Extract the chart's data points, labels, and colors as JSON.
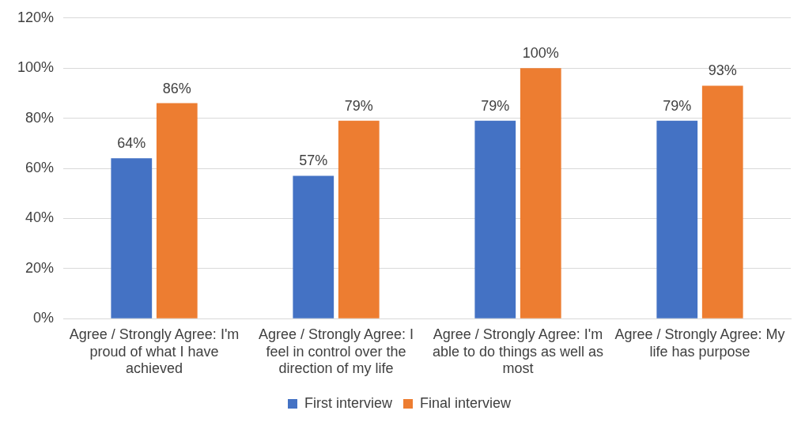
{
  "chart_data": {
    "type": "bar",
    "categories": [
      "Agree / Strongly Agree: I'm proud of what I have achieved",
      "Agree / Strongly Agree: I feel in control over the direction of my life",
      "Agree / Strongly Agree: I'm able to do things as well as most",
      "Agree / Strongly Agree: My life has purpose"
    ],
    "series": [
      {
        "name": "First interview",
        "color": "#4472c4",
        "values": [
          64,
          57,
          79,
          79
        ],
        "value_labels": [
          "64%",
          "57%",
          "79%",
          "79%"
        ]
      },
      {
        "name": "Final interview",
        "color": "#ed7d31",
        "values": [
          86,
          79,
          100,
          93
        ],
        "value_labels": [
          "86%",
          "79%",
          "100%",
          "93%"
        ]
      }
    ],
    "ylim": [
      0,
      120
    ],
    "yticks": [
      {
        "value": 0,
        "label": "0%"
      },
      {
        "value": 20,
        "label": "20%"
      },
      {
        "value": 40,
        "label": "40%"
      },
      {
        "value": 60,
        "label": "60%"
      },
      {
        "value": 80,
        "label": "80%"
      },
      {
        "value": 100,
        "label": "100%"
      },
      {
        "value": 120,
        "label": "120%"
      }
    ],
    "grid": "y",
    "legend": "bottom"
  }
}
